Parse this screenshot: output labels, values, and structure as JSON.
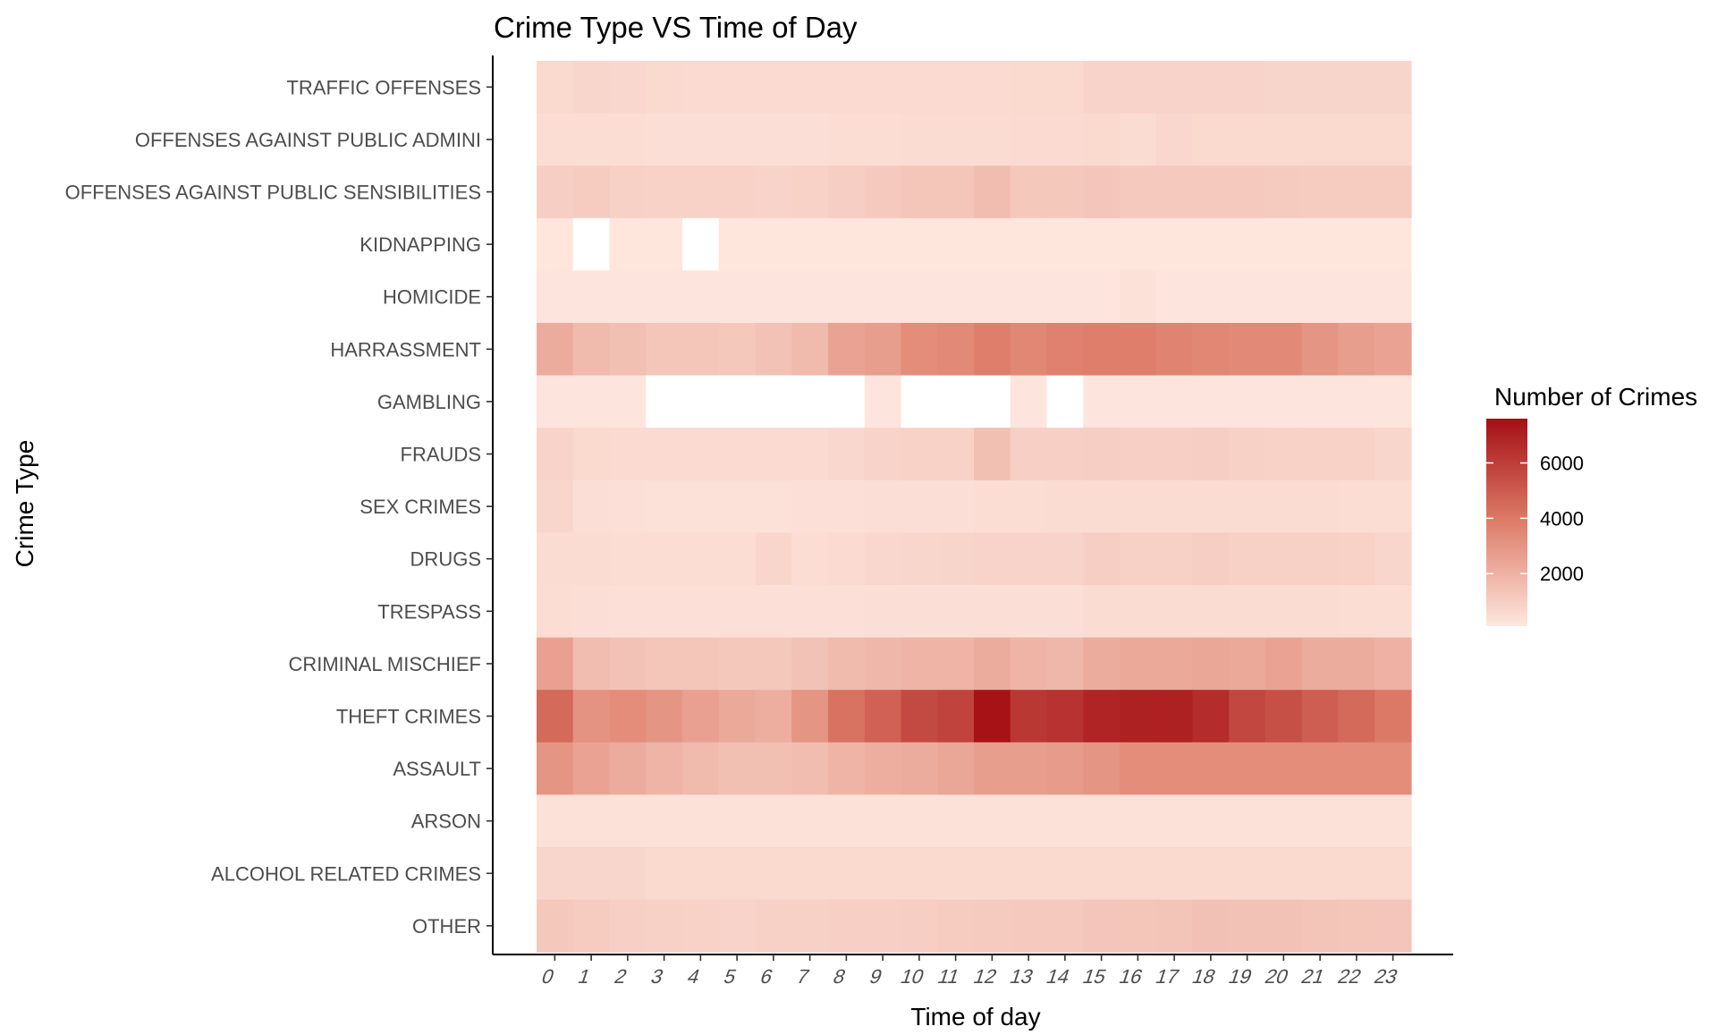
{
  "chart_data": {
    "type": "heatmap",
    "title": "Crime Type VS Time of Day",
    "xlabel": "Time of day",
    "ylabel": "Crime Type",
    "x": [
      "0",
      "1",
      "2",
      "3",
      "4",
      "5",
      "6",
      "7",
      "8",
      "9",
      "10",
      "11",
      "12",
      "13",
      "14",
      "15",
      "16",
      "17",
      "18",
      "19",
      "20",
      "21",
      "22",
      "23"
    ],
    "y": [
      "TRAFFIC OFFENSES",
      "OFFENSES AGAINST PUBLIC ADMINI",
      "OFFENSES AGAINST PUBLIC SENSIBILITIES",
      "KIDNAPPING",
      "HOMICIDE",
      "HARRASSMENT",
      "GAMBLING",
      "FRAUDS",
      "SEX CRIMES",
      "DRUGS",
      "TRESPASS",
      "CRIMINAL MISCHIEF",
      "THEFT CRIMES",
      "ASSAULT",
      "ARSON",
      "ALCOHOL RELATED CRIMES",
      "OTHER"
    ],
    "values": [
      [
        600,
        700,
        650,
        600,
        550,
        550,
        550,
        550,
        550,
        550,
        550,
        550,
        550,
        600,
        600,
        800,
        800,
        800,
        800,
        800,
        750,
        750,
        750,
        750
      ],
      [
        450,
        450,
        450,
        400,
        400,
        400,
        400,
        400,
        450,
        450,
        500,
        500,
        500,
        550,
        550,
        600,
        500,
        650,
        600,
        600,
        600,
        600,
        600,
        600
      ],
      [
        1000,
        1050,
        900,
        850,
        850,
        850,
        800,
        850,
        1000,
        1150,
        1300,
        1300,
        1600,
        1200,
        1200,
        1250,
        1150,
        1150,
        1150,
        1150,
        1100,
        1050,
        1050,
        1050
      ],
      [
        150,
        null,
        150,
        150,
        null,
        150,
        150,
        150,
        150,
        150,
        150,
        150,
        150,
        150,
        150,
        150,
        150,
        150,
        150,
        150,
        150,
        150,
        150,
        150
      ],
      [
        200,
        200,
        200,
        200,
        200,
        200,
        200,
        200,
        200,
        200,
        200,
        200,
        200,
        200,
        200,
        200,
        300,
        200,
        200,
        200,
        200,
        200,
        200,
        200
      ],
      [
        2200,
        1700,
        1500,
        1300,
        1300,
        1200,
        1400,
        1700,
        2500,
        2700,
        3300,
        3400,
        3800,
        3500,
        3700,
        3800,
        3800,
        3600,
        3500,
        3400,
        3400,
        3000,
        2700,
        2500
      ],
      [
        200,
        200,
        200,
        null,
        null,
        null,
        null,
        null,
        null,
        200,
        null,
        null,
        null,
        200,
        null,
        200,
        200,
        200,
        200,
        200,
        200,
        200,
        200,
        200
      ],
      [
        800,
        600,
        550,
        550,
        550,
        550,
        550,
        550,
        650,
        800,
        850,
        850,
        1500,
        950,
        950,
        1000,
        950,
        950,
        1000,
        900,
        850,
        850,
        850,
        700
      ],
      [
        700,
        400,
        350,
        300,
        300,
        300,
        300,
        350,
        350,
        400,
        400,
        400,
        450,
        450,
        500,
        500,
        500,
        500,
        500,
        500,
        500,
        500,
        450,
        450
      ],
      [
        500,
        500,
        450,
        450,
        450,
        450,
        700,
        450,
        550,
        650,
        700,
        750,
        800,
        800,
        800,
        1000,
        900,
        900,
        1000,
        900,
        900,
        900,
        850,
        700
      ],
      [
        450,
        400,
        350,
        350,
        350,
        350,
        350,
        350,
        350,
        400,
        400,
        400,
        400,
        400,
        400,
        500,
        500,
        500,
        500,
        500,
        500,
        500,
        450,
        450
      ],
      [
        2600,
        1600,
        1400,
        1300,
        1300,
        1200,
        1200,
        1400,
        1700,
        1800,
        1900,
        1900,
        2200,
        1900,
        1800,
        2200,
        2300,
        2300,
        2400,
        2300,
        2500,
        2200,
        2200,
        2000
      ],
      [
        4500,
        3100,
        3300,
        3000,
        2600,
        2300,
        2100,
        3000,
        4200,
        4800,
        5600,
        5800,
        7500,
        6200,
        6400,
        6900,
        7000,
        7000,
        6600,
        5700,
        5400,
        4900,
        4500,
        4000
      ],
      [
        3000,
        2500,
        2200,
        1900,
        1700,
        1500,
        1500,
        1600,
        1900,
        2100,
        2200,
        2400,
        2700,
        2700,
        2800,
        3000,
        3300,
        3300,
        3300,
        3300,
        3300,
        3300,
        3300,
        3300
      ],
      [
        300,
        300,
        300,
        300,
        300,
        300,
        300,
        300,
        300,
        300,
        300,
        300,
        300,
        300,
        300,
        300,
        300,
        300,
        300,
        300,
        300,
        300,
        300,
        300
      ],
      [
        700,
        700,
        700,
        600,
        600,
        600,
        600,
        600,
        600,
        600,
        600,
        600,
        600,
        600,
        600,
        600,
        600,
        600,
        600,
        600,
        600,
        600,
        600,
        600
      ],
      [
        1200,
        1050,
        950,
        900,
        850,
        800,
        900,
        900,
        950,
        950,
        1000,
        1050,
        1100,
        1150,
        1150,
        1250,
        1300,
        1350,
        1450,
        1400,
        1400,
        1350,
        1300,
        1250
      ]
    ],
    "colorbar": {
      "title": "Number of Crimes",
      "min": 100,
      "max": 7600,
      "ticks": [
        "2000",
        "4000",
        "6000"
      ],
      "low_color": "#fee7df",
      "high_color": "#a50f15"
    },
    "missing_color": "#ffffff",
    "grid": false,
    "legend_position": "right"
  }
}
